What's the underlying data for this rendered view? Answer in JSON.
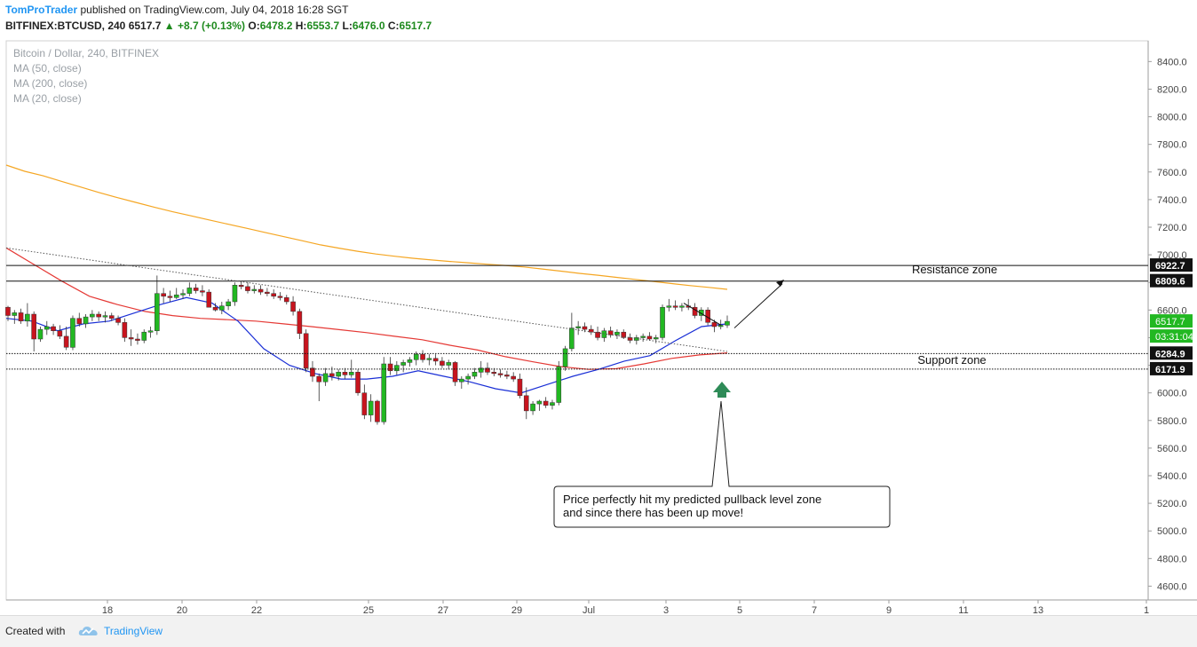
{
  "header": {
    "author": "TomProTrader",
    "published": " published on TradingView.com, July 04, 2018 16:28 SGT",
    "symbol": "BITFINEX:BTCUSD, 240",
    "last": " 6517.7 ",
    "change": "+8.7 (+0.13%)",
    "o_label": "O:",
    "o_value": "6478.2",
    "h_label": "H:",
    "h_value": "6553.7",
    "l_label": "L:",
    "l_value": "6476.0",
    "c_label": "C:",
    "c_value": "6517.7"
  },
  "legend": {
    "title": "Bitcoin / Dollar, 240, BITFINEX",
    "ma50": "MA (50, close)",
    "ma200": "MA (200, close)",
    "ma20": "MA (20, close)"
  },
  "annotations": {
    "resistance": "Resistance zone",
    "support": "Support zone",
    "callout_line1": "Price perfectly hit my predicted pullback level zone",
    "callout_line2": "and since there has been up move!"
  },
  "footer": {
    "created": "Created with",
    "brand": "TradingView"
  },
  "colors": {
    "up": "#22b822",
    "down": "#c8141e",
    "ma50": "#e53935",
    "ma200": "#f5a623",
    "ma20": "#1a2fd6",
    "author": "#2196f3",
    "arrow_up": "#2e8b57"
  },
  "chart_data": {
    "type": "candlestick",
    "symbol": "BITFINEX:BTCUSD",
    "timeframe": "240",
    "ylim": [
      4500,
      8550
    ],
    "y_ticks": [
      4600,
      4800,
      5000,
      5200,
      5400,
      5600,
      5800,
      6000,
      6200,
      6400,
      6600,
      6800,
      7000,
      7200,
      7400,
      7600,
      7800,
      8000,
      8200,
      8400
    ],
    "x_ticks": [
      "18",
      "20",
      "22",
      "25",
      "27",
      "29",
      "Jul",
      "3",
      "5",
      "7",
      "9",
      "11",
      "13",
      "1"
    ],
    "price_labels": [
      {
        "text": "6922.7",
        "value": 6922.7,
        "style": "dark"
      },
      {
        "text": "6809.6",
        "value": 6809.6,
        "style": "dark"
      },
      {
        "text": "6517.7",
        "value": 6517.7,
        "style": "green"
      },
      {
        "text": "03:31:04",
        "value": 6420,
        "style": "timer"
      },
      {
        "text": "6284.9",
        "value": 6284.9,
        "style": "dark"
      },
      {
        "text": "6171.9",
        "value": 6171.9,
        "style": "dark"
      }
    ],
    "horizontal_lines": {
      "resistance": [
        6922.7,
        6809.6
      ],
      "support": [
        6284.9,
        6171.9
      ]
    },
    "candles": [
      [
        6620,
        6630,
        6520,
        6560
      ],
      [
        6560,
        6600,
        6500,
        6580
      ],
      [
        6580,
        6610,
        6500,
        6520
      ],
      [
        6520,
        6650,
        6480,
        6570
      ],
      [
        6570,
        6590,
        6300,
        6390
      ],
      [
        6390,
        6480,
        6370,
        6460
      ],
      [
        6460,
        6520,
        6420,
        6480
      ],
      [
        6480,
        6500,
        6420,
        6450
      ],
      [
        6450,
        6490,
        6390,
        6410
      ],
      [
        6410,
        6480,
        6310,
        6330
      ],
      [
        6330,
        6560,
        6310,
        6540
      ],
      [
        6540,
        6580,
        6480,
        6500
      ],
      [
        6500,
        6570,
        6470,
        6550
      ],
      [
        6550,
        6600,
        6520,
        6570
      ],
      [
        6570,
        6590,
        6520,
        6550
      ],
      [
        6550,
        6590,
        6510,
        6560
      ],
      [
        6560,
        6580,
        6520,
        6540
      ],
      [
        6540,
        6560,
        6490,
        6510
      ],
      [
        6510,
        6540,
        6370,
        6400
      ],
      [
        6400,
        6460,
        6340,
        6390
      ],
      [
        6390,
        6430,
        6350,
        6380
      ],
      [
        6380,
        6460,
        6360,
        6440
      ],
      [
        6440,
        6480,
        6400,
        6450
      ],
      [
        6450,
        6850,
        6420,
        6720
      ],
      [
        6720,
        6760,
        6650,
        6700
      ],
      [
        6700,
        6740,
        6660,
        6690
      ],
      [
        6690,
        6760,
        6680,
        6710
      ],
      [
        6710,
        6750,
        6680,
        6720
      ],
      [
        6720,
        6800,
        6700,
        6760
      ],
      [
        6760,
        6790,
        6720,
        6740
      ],
      [
        6740,
        6780,
        6700,
        6730
      ],
      [
        6730,
        6750,
        6620,
        6620
      ],
      [
        6620,
        6650,
        6590,
        6600
      ],
      [
        6600,
        6660,
        6570,
        6630
      ],
      [
        6630,
        6680,
        6600,
        6660
      ],
      [
        6660,
        6800,
        6630,
        6780
      ],
      [
        6780,
        6810,
        6750,
        6770
      ],
      [
        6770,
        6800,
        6720,
        6740
      ],
      [
        6740,
        6780,
        6720,
        6750
      ],
      [
        6750,
        6780,
        6710,
        6730
      ],
      [
        6730,
        6760,
        6700,
        6720
      ],
      [
        6720,
        6750,
        6680,
        6700
      ],
      [
        6700,
        6730,
        6670,
        6690
      ],
      [
        6690,
        6710,
        6640,
        6660
      ],
      [
        6660,
        6700,
        6560,
        6590
      ],
      [
        6590,
        6610,
        6390,
        6430
      ],
      [
        6430,
        6460,
        6150,
        6180
      ],
      [
        6180,
        6230,
        6080,
        6120
      ],
      [
        6120,
        6140,
        5940,
        6080
      ],
      [
        6080,
        6180,
        6050,
        6140
      ],
      [
        6140,
        6190,
        6090,
        6120
      ],
      [
        6120,
        6170,
        6090,
        6150
      ],
      [
        6150,
        6180,
        6100,
        6130
      ],
      [
        6130,
        6240,
        6110,
        6150
      ],
      [
        6150,
        6170,
        5980,
        6000
      ],
      [
        6000,
        6060,
        5810,
        5840
      ],
      [
        5840,
        5990,
        5790,
        5940
      ],
      [
        5940,
        5950,
        5770,
        5790
      ],
      [
        5790,
        6260,
        5770,
        6210
      ],
      [
        6210,
        6260,
        6130,
        6160
      ],
      [
        6160,
        6230,
        6130,
        6200
      ],
      [
        6200,
        6240,
        6150,
        6220
      ],
      [
        6220,
        6260,
        6190,
        6240
      ],
      [
        6240,
        6300,
        6200,
        6280
      ],
      [
        6280,
        6310,
        6220,
        6240
      ],
      [
        6240,
        6280,
        6200,
        6250
      ],
      [
        6250,
        6280,
        6200,
        6230
      ],
      [
        6230,
        6260,
        6180,
        6200
      ],
      [
        6200,
        6240,
        6170,
        6220
      ],
      [
        6220,
        6230,
        6050,
        6080
      ],
      [
        6080,
        6120,
        6030,
        6100
      ],
      [
        6100,
        6140,
        6060,
        6120
      ],
      [
        6120,
        6180,
        6100,
        6150
      ],
      [
        6150,
        6230,
        6110,
        6180
      ],
      [
        6180,
        6220,
        6130,
        6150
      ],
      [
        6150,
        6180,
        6120,
        6140
      ],
      [
        6140,
        6170,
        6110,
        6130
      ],
      [
        6130,
        6160,
        6100,
        6120
      ],
      [
        6120,
        6150,
        6080,
        6100
      ],
      [
        6100,
        6140,
        5960,
        5980
      ],
      [
        5980,
        6040,
        5810,
        5870
      ],
      [
        5870,
        5940,
        5840,
        5920
      ],
      [
        5920,
        5950,
        5870,
        5940
      ],
      [
        5940,
        5970,
        5890,
        5910
      ],
      [
        5910,
        5950,
        5880,
        5930
      ],
      [
        5930,
        6230,
        5910,
        6190
      ],
      [
        6190,
        6340,
        6160,
        6320
      ],
      [
        6320,
        6580,
        6300,
        6470
      ],
      [
        6470,
        6520,
        6420,
        6480
      ],
      [
        6480,
        6510,
        6440,
        6460
      ],
      [
        6460,
        6490,
        6420,
        6440
      ],
      [
        6440,
        6480,
        6380,
        6400
      ],
      [
        6400,
        6470,
        6370,
        6450
      ],
      [
        6450,
        6480,
        6400,
        6420
      ],
      [
        6420,
        6460,
        6390,
        6440
      ],
      [
        6440,
        6460,
        6390,
        6400
      ],
      [
        6400,
        6430,
        6360,
        6380
      ],
      [
        6380,
        6420,
        6350,
        6400
      ],
      [
        6400,
        6430,
        6370,
        6410
      ],
      [
        6410,
        6440,
        6380,
        6390
      ],
      [
        6390,
        6420,
        6360,
        6400
      ],
      [
        6400,
        6640,
        6380,
        6620
      ],
      [
        6620,
        6680,
        6590,
        6630
      ],
      [
        6630,
        6670,
        6600,
        6620
      ],
      [
        6620,
        6650,
        6590,
        6630
      ],
      [
        6630,
        6680,
        6600,
        6620
      ],
      [
        6620,
        6650,
        6540,
        6560
      ],
      [
        6560,
        6620,
        6520,
        6600
      ],
      [
        6600,
        6620,
        6490,
        6510
      ],
      [
        6510,
        6530,
        6440,
        6480
      ],
      [
        6480,
        6530,
        6460,
        6490
      ],
      [
        6490,
        6560,
        6470,
        6517.7
      ]
    ],
    "ma200": [
      7650,
      7605,
      7572,
      7532,
      7492,
      7452,
      7415,
      7380,
      7345,
      7312,
      7282,
      7252,
      7222,
      7192,
      7162,
      7132,
      7102,
      7072,
      7048,
      7026,
      7006,
      6990,
      6975,
      6963,
      6952,
      6942,
      6932,
      6923,
      6912,
      6897,
      6882,
      6866,
      6852,
      6837,
      6822,
      6807,
      6792,
      6777,
      6764,
      6750
    ],
    "ma50": [
      7050,
      6930,
      6810,
      6700,
      6640,
      6590,
      6560,
      6540,
      6530,
      6520,
      6500,
      6480,
      6458,
      6436,
      6410,
      6385,
      6345,
      6310,
      6262,
      6225,
      6190,
      6170,
      6175,
      6210,
      6250,
      6275,
      6290
    ],
    "ma20": [
      6540,
      6520,
      6450,
      6500,
      6520,
      6580,
      6640,
      6690,
      6650,
      6520,
      6320,
      6200,
      6140,
      6100,
      6100,
      6120,
      6160,
      6120,
      6080,
      6030,
      6000,
      6060,
      6120,
      6170,
      6230,
      6270,
      6380,
      6480,
      6500
    ]
  }
}
